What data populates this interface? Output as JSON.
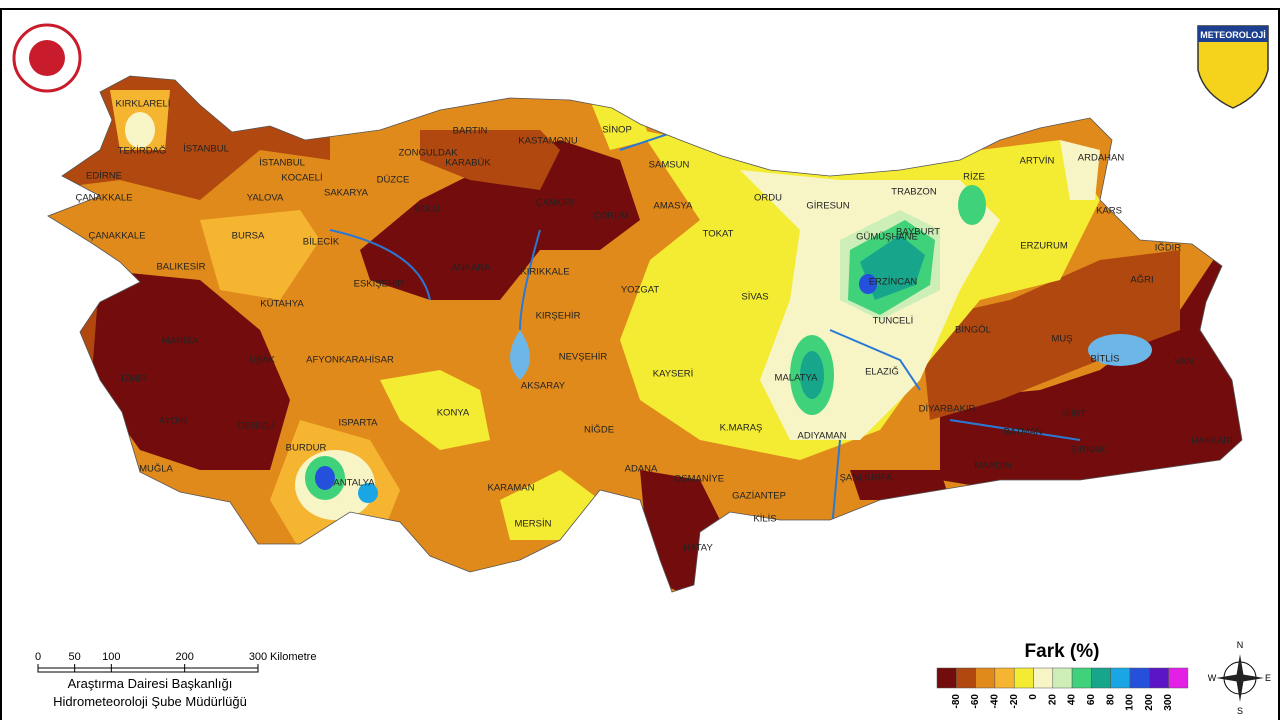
{
  "logo_text": "METEOROLOJİ",
  "cities": [
    "KIRKLARELİ",
    "TEKİRDAĞ",
    "İSTANBUL",
    "İSTANBUL",
    "EDİRNE",
    "ÇANAKKALE",
    "ÇANAKKALE",
    "KOCAELİ",
    "SAKARYA",
    "YALOVA",
    "DÜZCE",
    "BOLU",
    "BURSA",
    "BİLECİK",
    "ZONGULDAK",
    "BARTIN",
    "KARABÜK",
    "KASTAMONU",
    "SİNOP",
    "SAMSUN",
    "ÇANKIRI",
    "ÇORUM",
    "AMASYA",
    "ORDU",
    "GİRESUN",
    "TRABZON",
    "RİZE",
    "ARTVİN",
    "ARDAHAN",
    "KARS",
    "IĞDIR",
    "AĞRI",
    "ERZURUM",
    "BAYBURT",
    "GÜMÜŞHANE",
    "ERZİNCAN",
    "TOKAT",
    "SİVAS",
    "YOZGAT",
    "ANKARA",
    "KIRIKKALE",
    "ESKİŞEHİR",
    "KÜTAHYA",
    "BALIKESİR",
    "MANİSA",
    "İZMİR",
    "UŞAK",
    "AFYONKARAHİSAR",
    "KIRŞEHİR",
    "NEVŞEHİR",
    "KAYSERİ",
    "AKSARAY",
    "KONYA",
    "ISPARTA",
    "BURDUR",
    "AYDIN",
    "DENİZLİ",
    "MUĞLA",
    "ANTALYA",
    "KARAMAN",
    "MERSİN",
    "NİĞDE",
    "ADANA",
    "OSMANİYE",
    "HATAY",
    "GAZİANTEP",
    "KİLİS",
    "K.MARAŞ",
    "ADIYAMAN",
    "MALATYA",
    "ELAZIĞ",
    "TUNCELİ",
    "BİNGÖL",
    "MUŞ",
    "BİTLİS",
    "VAN",
    "SİİRT",
    "BATMAN",
    "ŞIRNAK",
    "HAKKARİ",
    "DİYARBAKIR",
    "MARDİN",
    "ŞANLIURFA"
  ],
  "scale_bar": {
    "ticks": [
      0,
      50,
      100,
      200,
      300
    ],
    "unit": "Kilometre"
  },
  "footer": {
    "line1": "Araştırma Dairesi Başkanlığı",
    "line2": "Hidrometeoroloji Şube Müdürlüğü"
  },
  "legend": {
    "title": "Fark (%)",
    "ticks": [
      -80,
      -60,
      -40,
      -20,
      0,
      20,
      40,
      60,
      80,
      100,
      200,
      300
    ],
    "colors": [
      "#730d0d",
      "#b0480f",
      "#e08a1c",
      "#f6b531",
      "#f4ec32",
      "#f7f5c6",
      "#cdeeb6",
      "#3fd27b",
      "#17a58c",
      "#1aa6e4",
      "#2450dc",
      "#5b14c6",
      "#e41fe6"
    ]
  },
  "compass": {
    "n": "N",
    "e": "E",
    "s": "S",
    "w": "W"
  }
}
